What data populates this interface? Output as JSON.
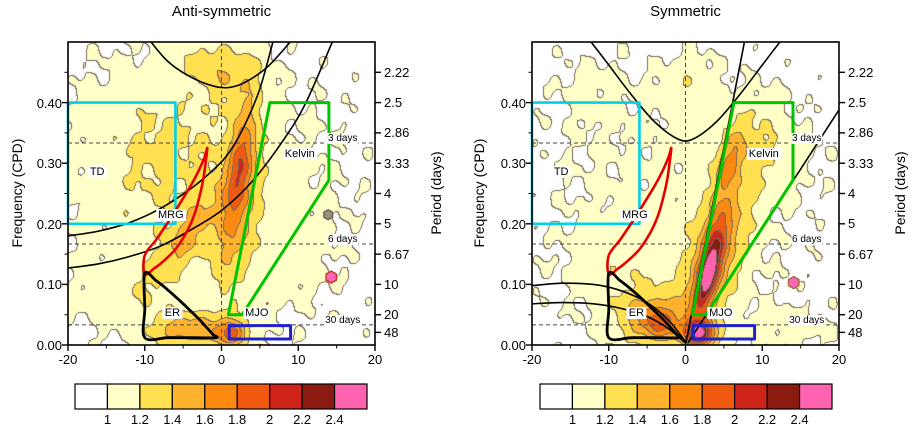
{
  "chart_data": {
    "type": "heatmap",
    "subtype": "wavenumber-frequency spectrum with filter regions and dispersion curves",
    "xlim": [
      -20,
      20
    ],
    "xticks": [
      -20,
      -10,
      0,
      10,
      20
    ],
    "ylim": [
      0,
      0.5
    ],
    "ylabel": "Frequency (CPD)",
    "y2label": "Period (days)",
    "yticks": [
      {
        "value": 0.0,
        "label": "0.00"
      },
      {
        "value": 0.1,
        "label": "0.10"
      },
      {
        "value": 0.2,
        "label": "0.20"
      },
      {
        "value": 0.3,
        "label": "0.30"
      },
      {
        "value": 0.4,
        "label": "0.40"
      }
    ],
    "period_ticks": [
      {
        "freq": 0.45,
        "label": "2.22"
      },
      {
        "freq": 0.4,
        "label": "2.5"
      },
      {
        "freq": 0.35,
        "label": "2.86"
      },
      {
        "freq": 0.3,
        "label": "3.33"
      },
      {
        "freq": 0.25,
        "label": "4"
      },
      {
        "freq": 0.2,
        "label": "5"
      },
      {
        "freq": 0.15,
        "label": "6.67"
      },
      {
        "freq": 0.1,
        "label": "10"
      },
      {
        "freq": 0.05,
        "label": "20"
      },
      {
        "freq": 0.0208,
        "label": "48"
      }
    ],
    "reference_lines": {
      "vertical": [
        0
      ],
      "horizontal": [
        {
          "freq": 0.3333,
          "label": "3 days"
        },
        {
          "freq": 0.1667,
          "label": "6 days"
        },
        {
          "freq": 0.0333,
          "label": "30 days"
        }
      ]
    },
    "regions": [
      {
        "name": "TD",
        "label": "TD",
        "color": "#00D2E8",
        "lw": 2.6,
        "type": "rect",
        "x1": -20,
        "y1": 0.2,
        "x2": -6,
        "y2": 0.4,
        "label_pos": [
          -16.2,
          0.285
        ]
      },
      {
        "name": "MRG",
        "label": "MRG",
        "color": "#E60000",
        "lw": 2.6,
        "type": "smooth-polygon",
        "points": [
          [
            -10,
            0.148
          ],
          [
            -8.5,
            0.174
          ],
          [
            -7,
            0.202
          ],
          [
            -5.5,
            0.232
          ],
          [
            -4,
            0.263
          ],
          [
            -3,
            0.287
          ],
          [
            -2.2,
            0.31
          ],
          [
            -1.85,
            0.325
          ],
          [
            -2.1,
            0.298
          ],
          [
            -2.4,
            0.272
          ],
          [
            -2.9,
            0.243
          ],
          [
            -3.6,
            0.213
          ],
          [
            -4.6,
            0.185
          ],
          [
            -6,
            0.158
          ],
          [
            -7.5,
            0.139
          ],
          [
            -8.8,
            0.126
          ],
          [
            -10,
            0.117
          ]
        ],
        "label_pos": [
          -6.6,
          0.215
        ]
      },
      {
        "name": "Kelvin",
        "label": "Kelvin",
        "color": "#00C400",
        "lw": 3,
        "type": "polygon",
        "points": [
          [
            0.9,
            0.05
          ],
          [
            2.7,
            0.05
          ],
          [
            14,
            0.272
          ],
          [
            14,
            0.4
          ],
          [
            6.3,
            0.4
          ]
        ],
        "label_pos": [
          10.2,
          0.315
        ]
      },
      {
        "name": "ER",
        "label": "ER",
        "color": "#000000",
        "lw": 2.8,
        "type": "smooth-polygon",
        "points": [
          [
            -10,
            0.012
          ],
          [
            -10,
            0.06
          ],
          [
            -10,
            0.118
          ],
          [
            -8.5,
            0.106
          ],
          [
            -7,
            0.091
          ],
          [
            -5.5,
            0.074
          ],
          [
            -4,
            0.056
          ],
          [
            -2.8,
            0.041
          ],
          [
            -1.8,
            0.027
          ],
          [
            -1.1,
            0.017
          ],
          [
            -0.7,
            0.012
          ],
          [
            -4,
            0.012
          ],
          [
            -7,
            0.012
          ]
        ],
        "label_pos": [
          -6.4,
          0.052
        ]
      },
      {
        "name": "MJO",
        "label": "MJO",
        "color": "#2020CC",
        "lw": 3,
        "type": "rect",
        "x1": 1,
        "y1": 0.01,
        "x2": 9,
        "y2": 0.032,
        "label_pos": [
          4.6,
          0.052
        ]
      }
    ],
    "panels": [
      {
        "title": "Anti-symmetric",
        "dispersion_curves": [
          [
            [
              -9.5,
              0.505
            ],
            [
              -7,
              0.468
            ],
            [
              -4,
              0.442
            ],
            [
              -1,
              0.427
            ],
            [
              1,
              0.425
            ],
            [
              3,
              0.433
            ],
            [
              6,
              0.459
            ],
            [
              9.3,
              0.505
            ]
          ],
          [
            [
              -20,
              0.18
            ],
            [
              -16,
              0.188
            ],
            [
              -12,
              0.202
            ],
            [
              -8,
              0.225
            ],
            [
              -4,
              0.258
            ],
            [
              -1,
              0.29
            ],
            [
              1,
              0.318
            ],
            [
              3,
              0.362
            ],
            [
              5,
              0.423
            ],
            [
              6.8,
              0.505
            ]
          ],
          [
            [
              -20,
              0.127
            ],
            [
              -16,
              0.134
            ],
            [
              -12,
              0.146
            ],
            [
              -8,
              0.163
            ],
            [
              -4,
              0.19
            ],
            [
              0,
              0.222
            ],
            [
              4,
              0.27
            ],
            [
              8,
              0.337
            ],
            [
              11,
              0.4
            ],
            [
              14.6,
              0.505
            ]
          ]
        ],
        "blobs": [
          {
            "x": -4,
            "y": 0.26,
            "su": 13,
            "sv": 13,
            "rot": 0,
            "amp": 0.2
          },
          {
            "x": -8,
            "y": 0.33,
            "su": 6,
            "sv": 7,
            "rot": 0,
            "amp": 0.15
          },
          {
            "x": -4.5,
            "y": 0.18,
            "su": 5.5,
            "sv": 1.7,
            "rot": 55,
            "amp": 0.34
          },
          {
            "x": 2.2,
            "y": 0.26,
            "su": 8.5,
            "sv": 1.5,
            "rot": 83,
            "amp": 0.62
          },
          {
            "x": 2.4,
            "y": 0.3,
            "su": 3.2,
            "sv": 0.9,
            "rot": 83,
            "amp": 0.26
          },
          {
            "x": 1.3,
            "y": 0.445,
            "su": 2.4,
            "sv": 2.6,
            "rot": 0,
            "amp": 0.28
          },
          {
            "x": -2.5,
            "y": 0.47,
            "su": 2.6,
            "sv": 2.2,
            "rot": 0,
            "amp": 0.2
          },
          {
            "x": -4.2,
            "y": 0.025,
            "su": 3.6,
            "sv": 1.7,
            "rot": 0,
            "amp": 0.55
          },
          {
            "x": 1.4,
            "y": 0.02,
            "su": 1.5,
            "sv": 1.3,
            "rot": 0,
            "amp": 0.7
          },
          {
            "x": 8,
            "y": 0.16,
            "su": 5,
            "sv": 6,
            "rot": 0,
            "amp": 0.1
          },
          {
            "x": -13,
            "y": 0.08,
            "su": 4.5,
            "sv": 3.5,
            "rot": 0,
            "amp": 0.12
          }
        ],
        "spots": [
          {
            "k": 13.9,
            "f": 0.215,
            "r": 5,
            "fill": "#97907E",
            "stroke": "#6E6758"
          },
          {
            "k": 14.3,
            "f": 0.112,
            "r": 6,
            "fill": "#FF66BB",
            "stroke": "#C23A28"
          }
        ]
      },
      {
        "title": "Symmetric",
        "dispersion_curves": [
          [
            [
              -12.6,
              0.505
            ],
            [
              -10,
              0.462
            ],
            [
              -7,
              0.412
            ],
            [
              -4,
              0.368
            ],
            [
              -1,
              0.34
            ],
            [
              1,
              0.34
            ],
            [
              4,
              0.368
            ],
            [
              7,
              0.412
            ],
            [
              10,
              0.462
            ],
            [
              12.6,
              0.505
            ]
          ],
          [
            [
              0.05,
              0.003
            ],
            [
              7.75,
              0.505
            ]
          ],
          [
            [
              0.3,
              0.003
            ],
            [
              20,
              0.388
            ]
          ],
          [
            [
              -20,
              0.098
            ],
            [
              -16,
              0.102
            ],
            [
              -12,
              0.1
            ],
            [
              -9,
              0.092
            ],
            [
              -6,
              0.077
            ],
            [
              -4,
              0.061
            ],
            [
              -2,
              0.038
            ],
            [
              -0.8,
              0.019
            ],
            [
              0,
              0.005
            ]
          ],
          [
            [
              -20,
              0.068
            ],
            [
              -16,
              0.07
            ],
            [
              -12,
              0.068
            ],
            [
              -9,
              0.062
            ],
            [
              -6,
              0.052
            ],
            [
              -4,
              0.041
            ],
            [
              -2,
              0.025
            ],
            [
              -0.8,
              0.012
            ],
            [
              0,
              0.003
            ]
          ]
        ],
        "blobs": [
          {
            "x": -2,
            "y": 0.22,
            "su": 12,
            "sv": 12,
            "rot": 0,
            "amp": 0.14
          },
          {
            "x": 4.2,
            "y": 0.16,
            "su": 9,
            "sv": 2.6,
            "rot": 76,
            "amp": 0.45
          },
          {
            "x": 3.1,
            "y": 0.13,
            "su": 5,
            "sv": 1.2,
            "rot": 76,
            "amp": 0.85
          },
          {
            "x": 2.9,
            "y": 0.115,
            "su": 2.2,
            "sv": 0.6,
            "rot": 76,
            "amp": 0.55
          },
          {
            "x": 5.6,
            "y": 0.3,
            "su": 2.8,
            "sv": 1.0,
            "rot": 72,
            "amp": 0.4
          },
          {
            "x": -4.5,
            "y": 0.045,
            "su": 3.4,
            "sv": 2.6,
            "rot": 0,
            "amp": 0.55
          },
          {
            "x": -3.4,
            "y": 0.035,
            "su": 1.6,
            "sv": 1.4,
            "rot": 0,
            "amp": 0.4
          },
          {
            "x": 1.9,
            "y": 0.02,
            "su": 1.4,
            "sv": 1.2,
            "rot": 0,
            "amp": 1.15
          },
          {
            "x": 0.3,
            "y": 0.43,
            "su": 2.6,
            "sv": 3,
            "rot": 0,
            "amp": 0.18
          },
          {
            "x": 9.5,
            "y": 0.34,
            "su": 3.6,
            "sv": 5,
            "rot": 60,
            "amp": 0.2
          },
          {
            "x": -9,
            "y": 0.13,
            "su": 4.5,
            "sv": 4,
            "rot": 0,
            "amp": 0.13
          },
          {
            "x": 14,
            "y": 0.03,
            "su": 5,
            "sv": 2,
            "rot": 0,
            "amp": 0.13
          },
          {
            "x": -12,
            "y": 0.42,
            "su": 4,
            "sv": 4,
            "rot": 0,
            "amp": 0.1
          }
        ],
        "spots": [
          {
            "k": 14.1,
            "f": 0.103,
            "r": 6,
            "fill": "#FF66BB",
            "stroke": "#A96F3F"
          }
        ]
      }
    ],
    "colorbar": {
      "levels": [
        1,
        1.2,
        1.4,
        1.6,
        1.8,
        2,
        2.2,
        2.4
      ],
      "labels": [
        "1",
        "1.2",
        "1.4",
        "1.6",
        "1.8",
        "2",
        "2.2",
        "2.4"
      ],
      "colors": [
        "#FFFFFF",
        "#FFFFC8",
        "#FFE050",
        "#FFB22E",
        "#FC8A10",
        "#EF5A10",
        "#CF241A",
        "#8B1A10",
        "#FF63B0"
      ],
      "contour_line_color": "#77695A",
      "base_value": 0.92
    }
  }
}
